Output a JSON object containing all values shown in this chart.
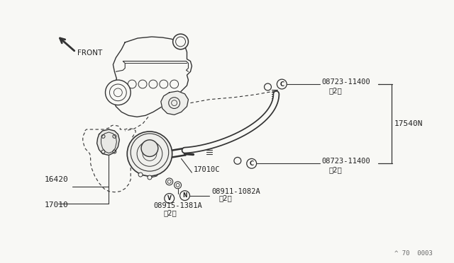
{
  "background_color": "#f8f8f5",
  "line_color": "#333333",
  "text_color": "#222222",
  "figsize": [
    6.4,
    3.72
  ],
  "dpi": 100,
  "labels": {
    "front": "FRONT",
    "part_16420": "16420",
    "part_17010": "17010",
    "part_17010C": "17010C",
    "part_17540N": "17540N",
    "part_08723_top": "08723-11400",
    "part_08723_top_qty": "（2）",
    "part_08723_bot": "08723-11400",
    "part_08723_bot_qty": "（2）",
    "part_08911": "08911-1082A",
    "part_08911_qty": "（2）",
    "part_08915": "08915-1381A",
    "part_08915_qty": "（2）",
    "watermark": "^ 70  0003"
  }
}
